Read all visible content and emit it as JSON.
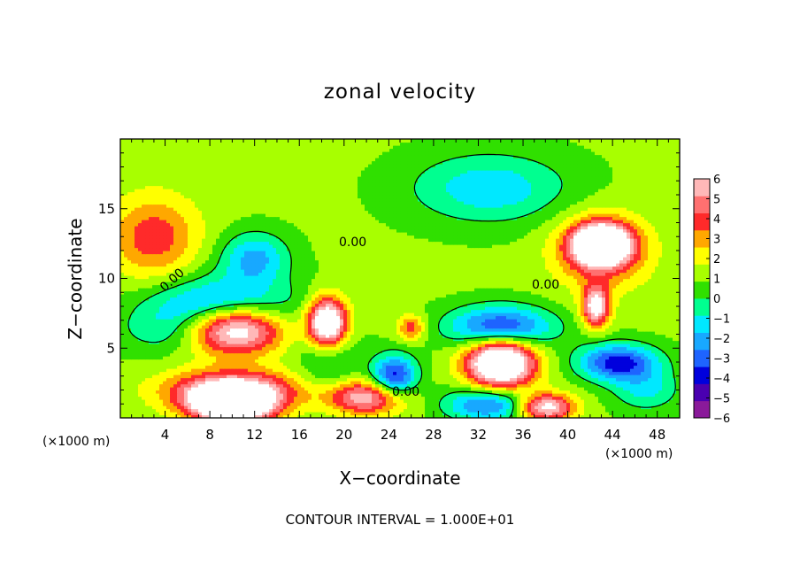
{
  "chart_data": {
    "type": "heatmap",
    "title": "zonal velocity",
    "xlabel": "X−coordinate",
    "ylabel": "Z−coordinate",
    "x_unit_left": "(×1000 m)",
    "x_unit_right": "(×1000 m)",
    "footer": "CONTOUR INTERVAL = 1.000E+01",
    "xlim": [
      0,
      50
    ],
    "ylim": [
      0,
      20
    ],
    "x_ticks": [
      4,
      8,
      12,
      16,
      20,
      24,
      28,
      32,
      36,
      40,
      44,
      48
    ],
    "y_ticks": [
      5,
      10,
      15
    ],
    "contour_labels": [
      "0.00",
      "0.00",
      "0.00",
      "0.00"
    ],
    "colorbar": {
      "range": [
        -6,
        6
      ],
      "ticks": [
        6,
        5,
        4,
        3,
        2,
        1,
        0,
        -1,
        -2,
        -3,
        -4,
        -5,
        -6
      ],
      "tick_labels": [
        "6",
        "5",
        "4",
        "3",
        "2",
        "1",
        "0",
        "−1",
        "−2",
        "−3",
        "−4",
        "−5",
        "−6"
      ],
      "colors": [
        "#8a1a9a",
        "#4a00b0",
        "#0000dd",
        "#1e64ff",
        "#18a8ff",
        "#00e8ff",
        "#00ff90",
        "#30e000",
        "#a8ff00",
        "#ffff00",
        "#ffa800",
        "#ff2a2a",
        "#ff7070",
        "#ffb8b8"
      ]
    },
    "background_value": 1,
    "features": [
      {
        "x": 10,
        "z": 6.5,
        "value": 10,
        "rx": 4.5,
        "rz": 1.8
      },
      {
        "x": 9,
        "z": 7.5,
        "value": -6,
        "rx": 6,
        "rz": 2.2
      },
      {
        "x": 18.5,
        "z": 6.8,
        "value": 9,
        "rx": 1.8,
        "rz": 1.8
      },
      {
        "x": 18.5,
        "z": 5,
        "value": -2,
        "rx": 2.5,
        "rz": 3
      },
      {
        "x": 34,
        "z": 4,
        "value": 9,
        "rx": 3,
        "rz": 1.8
      },
      {
        "x": 34,
        "z": 6.5,
        "value": -5,
        "rx": 4.5,
        "rz": 1.5
      },
      {
        "x": 43,
        "z": 12.5,
        "value": 9,
        "rx": 2.3,
        "rz": 1.3
      },
      {
        "x": 43,
        "z": 12,
        "value": 4,
        "rx": 4,
        "rz": 2.5
      },
      {
        "x": 42.5,
        "z": 8,
        "value": 6,
        "rx": 1.2,
        "rz": 1.4
      },
      {
        "x": 10,
        "z": 1,
        "value": 9,
        "rx": 3.5,
        "rz": 1.3
      },
      {
        "x": 10,
        "z": 2,
        "value": 5,
        "rx": 6,
        "rz": 1.5
      },
      {
        "x": 24.5,
        "z": 3,
        "value": -5,
        "rx": 2,
        "rz": 1.5
      },
      {
        "x": 26,
        "z": 6.5,
        "value": 3,
        "rx": 1.2,
        "rz": 0.9
      },
      {
        "x": 44.5,
        "z": 4,
        "value": -5,
        "rx": 3.5,
        "rz": 1.3
      },
      {
        "x": 12,
        "z": 11.5,
        "value": -3,
        "rx": 3,
        "rz": 1.8
      },
      {
        "x": 33,
        "z": 16.5,
        "value": -2.5,
        "rx": 7,
        "rz": 2.5
      },
      {
        "x": 3,
        "z": 13,
        "value": 3,
        "rx": 4,
        "rz": 3
      },
      {
        "x": 5,
        "z": 6,
        "value": -1,
        "rx": 5,
        "rz": 1.5
      },
      {
        "x": 22,
        "z": 1.5,
        "value": 5,
        "rx": 3.5,
        "rz": 1.2
      },
      {
        "x": 33,
        "z": 1,
        "value": -4,
        "rx": 4,
        "rz": 1.2
      },
      {
        "x": 47,
        "z": 2,
        "value": -2,
        "rx": 3,
        "rz": 1.5
      },
      {
        "x": 38,
        "z": 0.8,
        "value": 6,
        "rx": 2.5,
        "rz": 1
      }
    ]
  }
}
